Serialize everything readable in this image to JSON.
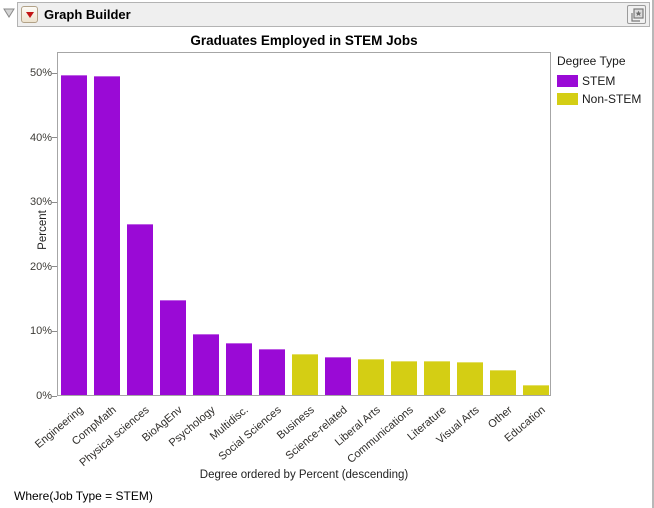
{
  "window": {
    "title": "Graph Builder",
    "icons": {
      "disclosure": "triangle-collapse",
      "red_triangle": "red-triangle-menu",
      "publish": "window-star"
    }
  },
  "footer": {
    "where_clause": "Where(Job Type = STEM)"
  },
  "chart_data": {
    "type": "bar",
    "title": "Graduates Employed in STEM Jobs",
    "xlabel": "Degree ordered by Percent (descending)",
    "ylabel": "Percent",
    "ylim": [
      0,
      53
    ],
    "yticks": [
      0,
      10,
      20,
      30,
      40,
      50
    ],
    "ytick_labels": [
      "0%",
      "10%",
      "20%",
      "30%",
      "40%",
      "50%"
    ],
    "grid": false,
    "categories": [
      "Engineering",
      "CompMath",
      "Physical sciences",
      "BioAgEnv",
      "Psychology",
      "Multidisc.",
      "Social Sciences",
      "Business",
      "Science-related",
      "Liberal Arts",
      "Communications",
      "Literature",
      "Visual Arts",
      "Other",
      "Education"
    ],
    "values": [
      49.6,
      49.4,
      26.4,
      14.7,
      9.5,
      8.1,
      7.1,
      6.4,
      5.9,
      5.5,
      5.2,
      5.2,
      5.1,
      3.8,
      1.6
    ],
    "bar_types": [
      "STEM",
      "STEM",
      "STEM",
      "STEM",
      "STEM",
      "STEM",
      "STEM",
      "Non-STEM",
      "STEM",
      "Non-STEM",
      "Non-STEM",
      "Non-STEM",
      "Non-STEM",
      "Non-STEM",
      "Non-STEM"
    ],
    "colors": {
      "STEM": "#9a0ad6",
      "Non-STEM": "#d4ce14"
    },
    "legend": {
      "title": "Degree Type",
      "position": "right",
      "entries": [
        {
          "label": "STEM",
          "color": "#9a0ad6"
        },
        {
          "label": "Non-STEM",
          "color": "#d4ce14"
        }
      ]
    }
  }
}
